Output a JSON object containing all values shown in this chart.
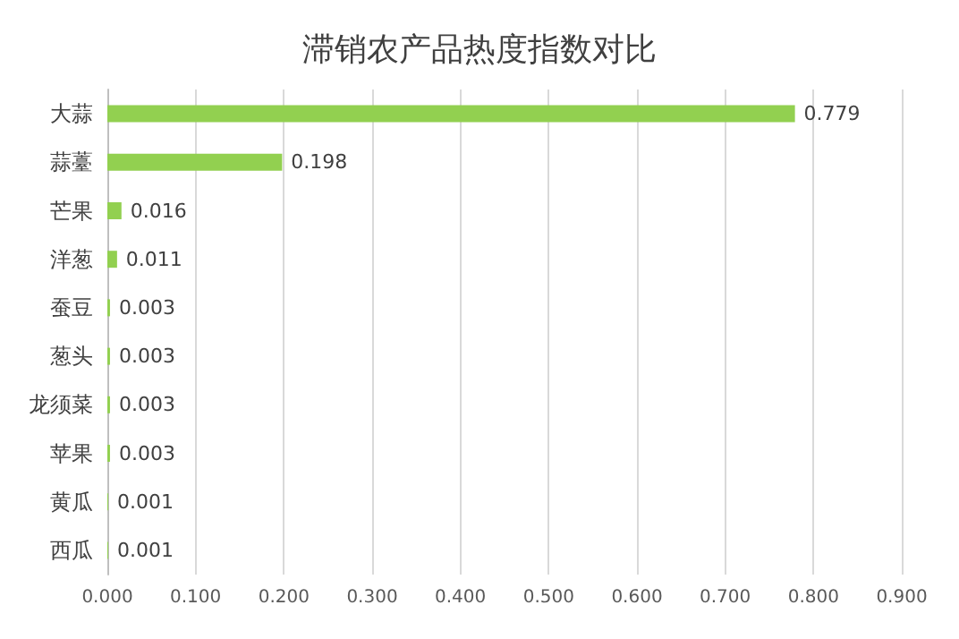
{
  "chart_data": {
    "type": "bar",
    "orientation": "horizontal",
    "title": "滞销农产品热度指数对比",
    "categories": [
      "大蒜",
      "蒜薹",
      "芒果",
      "洋葱",
      "蚕豆",
      "葱头",
      "龙须菜",
      "苹果",
      "黄瓜",
      "西瓜"
    ],
    "values": [
      0.779,
      0.198,
      0.016,
      0.011,
      0.003,
      0.003,
      0.003,
      0.003,
      0.001,
      0.001
    ],
    "color": "#92d050",
    "data_labels": true,
    "grid": "x",
    "xlim": [
      0,
      0.9
    ],
    "xticks": [
      {
        "value": 0,
        "label": "0.000"
      },
      {
        "value": 0.1,
        "label": "0.100"
      },
      {
        "value": 0.2,
        "label": "0.200"
      },
      {
        "value": 0.3,
        "label": "0.300"
      },
      {
        "value": 0.4,
        "label": "0.400"
      },
      {
        "value": 0.5,
        "label": "0.500"
      },
      {
        "value": 0.6,
        "label": "0.600"
      },
      {
        "value": 0.7,
        "label": "0.700"
      },
      {
        "value": 0.8,
        "label": "0.800"
      },
      {
        "value": 0.9,
        "label": "0.900"
      }
    ]
  }
}
